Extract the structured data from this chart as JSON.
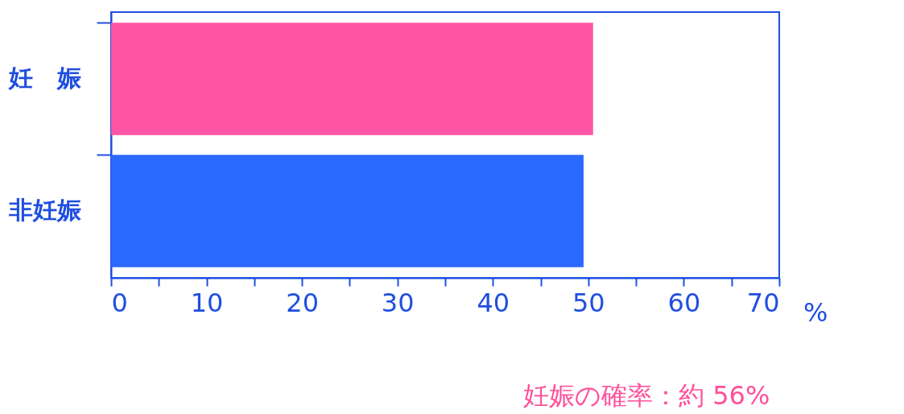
{
  "chart_data": {
    "type": "bar",
    "orientation": "horizontal",
    "categories": [
      "妊　娠",
      "非妊娠"
    ],
    "values": [
      50.5,
      49.5
    ],
    "colors": [
      "#ff55a5",
      "#2b68ff"
    ],
    "xlim": [
      0,
      70
    ],
    "xticks": [
      0,
      {
        "value": 5,
        "label": null
      },
      10,
      {
        "value": 15,
        "label": null
      },
      20,
      {
        "value": 25,
        "label": null
      },
      30,
      {
        "value": 35,
        "label": null
      },
      40,
      {
        "value": 45,
        "label": null
      },
      50,
      {
        "value": 55,
        "label": null
      },
      60,
      {
        "value": 65,
        "label": null
      },
      70
    ],
    "xlabel": "%",
    "grid": false,
    "annotations": [
      "妊娠の確率：約 56%"
    ]
  }
}
